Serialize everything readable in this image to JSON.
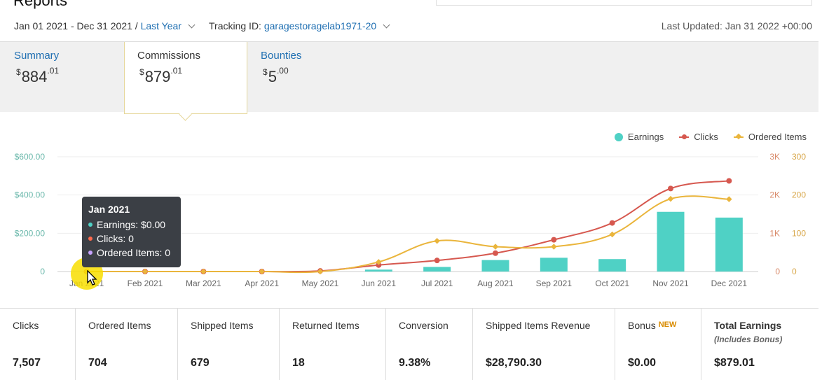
{
  "page": {
    "title": "Reports"
  },
  "filters": {
    "date_range": "Jan 01 2021 - Dec 31 2021 /",
    "period_link": "Last Year",
    "tracking_label": "Tracking ID:",
    "tracking_id": "garagestoragelab1971-20",
    "last_updated": "Last Updated: Jan 31 2022 +00:00"
  },
  "tabs": [
    {
      "label": "Summary",
      "currency": "$",
      "whole": "884",
      "cents": ".01"
    },
    {
      "label": "Commissions",
      "currency": "$",
      "whole": "879",
      "cents": ".01"
    },
    {
      "label": "Bounties",
      "currency": "$",
      "whole": "5",
      "cents": ".00"
    }
  ],
  "legend": {
    "earnings": "Earnings",
    "clicks": "Clicks",
    "ordered": "Ordered Items"
  },
  "tooltip": {
    "title": "Jan 2021",
    "earnings": "Earnings: $0.00",
    "clicks": "Clicks: 0",
    "ordered": "Ordered Items: 0"
  },
  "colors": {
    "earnings": "#4fd1c5",
    "clicks": "#d6584f",
    "ordered": "#eab53c",
    "link": "#1f6fb2",
    "highlight": "#f8de00"
  },
  "chart_data": {
    "type": "bar",
    "categories": [
      "Jan 2021",
      "Feb 2021",
      "Mar 2021",
      "Apr 2021",
      "May 2021",
      "Jun 2021",
      "Jul 2021",
      "Aug 2021",
      "Sep 2021",
      "Oct 2021",
      "Nov 2021",
      "Dec 2021"
    ],
    "series": [
      {
        "name": "Earnings",
        "type": "bar",
        "axis": "left",
        "values": [
          0,
          0,
          0,
          0,
          0,
          10,
          24,
          60,
          72,
          65,
          312,
          282
        ]
      },
      {
        "name": "Clicks",
        "type": "line",
        "axis": "right1",
        "values": [
          0,
          0,
          0,
          0,
          15,
          170,
          290,
          480,
          830,
          1270,
          2170,
          2370
        ]
      },
      {
        "name": "Ordered Items",
        "type": "line",
        "axis": "right2",
        "values": [
          0,
          0,
          0,
          0,
          0,
          25,
          80,
          65,
          65,
          97,
          190,
          189
        ]
      }
    ],
    "left_ticks": [
      "0",
      "$200.00",
      "$400.00",
      "$600.00"
    ],
    "left_ylim": [
      0,
      600
    ],
    "right1_ticks": [
      "0",
      "1K",
      "2K",
      "3K"
    ],
    "right1_ylim": [
      0,
      3000
    ],
    "right2_ticks": [
      "0",
      "100",
      "200",
      "300"
    ],
    "right2_ylim": [
      0,
      300
    ],
    "grid": true,
    "legend": "top-right"
  },
  "stats": [
    {
      "label": "Clicks",
      "value": "7,507"
    },
    {
      "label": "Ordered Items",
      "value": "704"
    },
    {
      "label": "Shipped Items",
      "value": "679"
    },
    {
      "label": "Returned Items",
      "value": "18"
    },
    {
      "label": "Conversion",
      "value": "9.38%"
    },
    {
      "label": "Shipped Items Revenue",
      "value": "$28,790.30"
    },
    {
      "label": "Bonus",
      "badge": "NEW",
      "value": "$0.00"
    },
    {
      "label": "Total Earnings",
      "sub": "(Includes Bonus)",
      "value": "$879.01"
    }
  ]
}
